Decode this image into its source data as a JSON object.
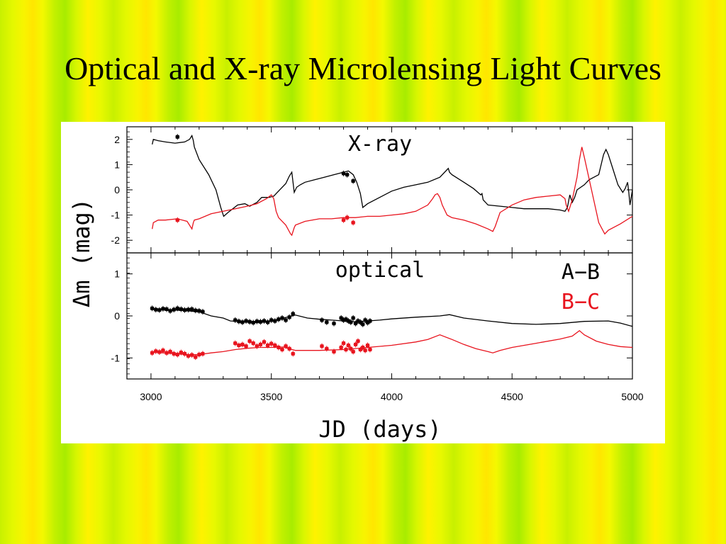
{
  "slide": {
    "title": "Optical and X-ray Microlensing Light Curves"
  },
  "chart_data": {
    "type": "line",
    "xlabel": "JD (days)",
    "ylabel": "Δm (mag)",
    "xlim": [
      2900,
      5000
    ],
    "x_ticks": [
      "3000",
      "3500",
      "4000",
      "4500",
      "5000"
    ],
    "legend": {
      "placement": "top-right of lower panel",
      "entries": [
        {
          "label": "A−B",
          "color": "#000000"
        },
        {
          "label": "B−C",
          "color": "#e8141e"
        }
      ]
    },
    "panels": [
      {
        "label": "X-ray",
        "ylim": [
          -2.5,
          2.5
        ],
        "y_ticks": [
          "2",
          "1",
          "0",
          "-1",
          "-2"
        ],
        "series": [
          {
            "color": "#000000",
            "x": [
              3005,
              3010,
              3030,
              3060,
              3100,
              3140,
              3160,
              3170,
              3176,
              3180,
              3200,
              3240,
              3270,
              3290,
              3302,
              3320,
              3360,
              3390,
              3410,
              3440,
              3460,
              3490,
              3510,
              3540,
              3560,
              3575,
              3585,
              3595,
              3605,
              3620,
              3640,
              3680,
              3720,
              3760,
              3800,
              3820,
              3840,
              3855,
              3870,
              3880,
              3900,
              3950,
              4000,
              4050,
              4100,
              4150,
              4200,
              4230,
              4235,
              4240,
              4250,
              4300,
              4340,
              4370,
              4375,
              4380,
              4400,
              4450,
              4500,
              4550,
              4600,
              4650,
              4700,
              4720,
              4730,
              4740,
              4750,
              4760,
              4770,
              4800,
              4820,
              4840,
              4860,
              4880,
              4890,
              4900,
              4920,
              4940,
              4960,
              4970,
              4980,
              4985,
              4990,
              5000
            ],
            "y": [
              1.8,
              2.0,
              1.95,
              1.9,
              1.85,
              1.9,
              2.0,
              2.15,
              1.95,
              1.7,
              1.2,
              0.6,
              0.0,
              -0.7,
              -1.05,
              -0.9,
              -0.6,
              -0.55,
              -0.65,
              -0.5,
              -0.3,
              -0.3,
              -0.25,
              0.05,
              0.25,
              0.55,
              0.7,
              -0.1,
              0.1,
              0.2,
              0.3,
              0.4,
              0.5,
              0.6,
              0.7,
              0.75,
              0.6,
              0.3,
              -0.15,
              -0.7,
              -0.55,
              -0.3,
              -0.05,
              0.1,
              0.2,
              0.3,
              0.5,
              0.8,
              0.85,
              0.7,
              0.6,
              0.3,
              0.05,
              -0.2,
              -0.15,
              -0.4,
              -0.6,
              -0.65,
              -0.7,
              -0.75,
              -0.75,
              -0.75,
              -0.8,
              -0.85,
              -0.7,
              -0.2,
              -0.5,
              -0.3,
              0.0,
              0.2,
              0.4,
              0.5,
              0.6,
              1.4,
              1.6,
              1.4,
              0.8,
              0.2,
              -0.1,
              0.05,
              0.3,
              -0.1,
              -0.6,
              0.0
            ]
          },
          {
            "color": "#e8141e",
            "x": [
              3005,
              3010,
              3030,
              3060,
              3110,
              3150,
              3170,
              3176,
              3180,
              3200,
              3250,
              3300,
              3350,
              3400,
              3440,
              3480,
              3500,
              3510,
              3520,
              3530,
              3560,
              3580,
              3585,
              3595,
              3600,
              3640,
              3700,
              3750,
              3800,
              3850,
              3900,
              3950,
              4000,
              4050,
              4100,
              4150,
              4170,
              4180,
              4190,
              4200,
              4210,
              4230,
              4250,
              4300,
              4350,
              4400,
              4420,
              4430,
              4450,
              4500,
              4550,
              4600,
              4650,
              4700,
              4720,
              4725,
              4735,
              4750,
              4770,
              4780,
              4790,
              4800,
              4830,
              4860,
              4885,
              4890,
              4900,
              4950,
              5000
            ],
            "y": [
              -1.55,
              -1.3,
              -1.2,
              -1.2,
              -1.15,
              -1.25,
              -1.55,
              -1.3,
              -1.2,
              -1.15,
              -0.95,
              -0.85,
              -0.75,
              -0.65,
              -0.55,
              -0.35,
              -0.2,
              -0.35,
              -0.85,
              -1.1,
              -1.4,
              -1.75,
              -1.8,
              -1.5,
              -1.4,
              -1.25,
              -1.15,
              -1.15,
              -1.1,
              -1.1,
              -1.05,
              -1.05,
              -1.0,
              -0.95,
              -0.85,
              -0.6,
              -0.35,
              -0.2,
              -0.15,
              -0.3,
              -0.6,
              -1.0,
              -1.1,
              -1.2,
              -1.35,
              -1.55,
              -1.65,
              -1.45,
              -0.9,
              -0.6,
              -0.4,
              -0.3,
              -0.25,
              -0.2,
              -0.35,
              -0.6,
              -0.85,
              -0.4,
              0.5,
              1.2,
              1.7,
              1.3,
              0.0,
              -1.3,
              -1.75,
              -1.7,
              -1.6,
              -1.35,
              -1.05
            ]
          }
        ],
        "data_points": [
          {
            "color": "#000000",
            "x": [
              3110,
              3800,
              3815,
              3840
            ],
            "y": [
              2.1,
              0.65,
              0.6,
              0.35
            ]
          },
          {
            "color": "#e8141e",
            "x": [
              3110,
              3800,
              3815,
              3840
            ],
            "y": [
              -1.2,
              -1.2,
              -1.1,
              -1.3
            ]
          }
        ]
      },
      {
        "label": "optical",
        "ylim": [
          -1.5,
          1.5
        ],
        "y_ticks": [
          "1",
          "0",
          "-1"
        ],
        "series": [
          {
            "color": "#000000",
            "x": [
              3000,
              3050,
              3100,
              3150,
              3200,
              3250,
              3300,
              3330,
              3400,
              3450,
              3500,
              3550,
              3600,
              3650,
              3700,
              3750,
              3800,
              3850,
              3900,
              3950,
              4000,
              4100,
              4200,
              4240,
              4300,
              4400,
              4500,
              4600,
              4700,
              4800,
              4900,
              4950,
              5000
            ],
            "y": [
              0.18,
              0.15,
              0.14,
              0.12,
              0.1,
              0.0,
              -0.05,
              -0.12,
              -0.14,
              -0.15,
              -0.12,
              -0.05,
              0.02,
              -0.05,
              -0.08,
              -0.1,
              -0.12,
              -0.14,
              -0.12,
              -0.1,
              -0.07,
              -0.03,
              0.0,
              0.03,
              -0.05,
              -0.12,
              -0.18,
              -0.2,
              -0.18,
              -0.13,
              -0.12,
              -0.17,
              -0.25
            ]
          },
          {
            "color": "#e8141e",
            "x": [
              3000,
              3050,
              3100,
              3150,
              3200,
              3250,
              3300,
              3350,
              3400,
              3450,
              3500,
              3550,
              3600,
              3700,
              3800,
              3900,
              4000,
              4100,
              4150,
              4200,
              4250,
              4300,
              4350,
              4400,
              4420,
              4450,
              4500,
              4600,
              4700,
              4750,
              4780,
              4800,
              4850,
              4900,
              4950,
              5000
            ],
            "y": [
              -0.85,
              -0.88,
              -0.9,
              -0.92,
              -0.92,
              -0.88,
              -0.85,
              -0.8,
              -0.77,
              -0.75,
              -0.75,
              -0.74,
              -0.82,
              -0.82,
              -0.8,
              -0.75,
              -0.7,
              -0.62,
              -0.56,
              -0.45,
              -0.56,
              -0.68,
              -0.78,
              -0.85,
              -0.88,
              -0.82,
              -0.75,
              -0.65,
              -0.55,
              -0.48,
              -0.35,
              -0.45,
              -0.6,
              -0.68,
              -0.73,
              -0.75
            ]
          }
        ],
        "data_points": [
          {
            "color": "#000000",
            "x": [
              3005,
              3020,
              3035,
              3050,
              3065,
              3080,
              3095,
              3110,
              3125,
              3140,
              3155,
              3170,
              3185,
              3200,
              3215,
              3350,
              3365,
              3380,
              3395,
              3410,
              3425,
              3440,
              3455,
              3470,
              3485,
              3500,
              3515,
              3530,
              3545,
              3560,
              3575,
              3590,
              3710,
              3730,
              3760,
              3790,
              3800,
              3810,
              3820,
              3830,
              3840,
              3850,
              3860,
              3870,
              3880,
              3890,
              3900,
              3910
            ],
            "y": [
              0.18,
              0.15,
              0.14,
              0.17,
              0.16,
              0.12,
              0.15,
              0.18,
              0.16,
              0.14,
              0.15,
              0.16,
              0.13,
              0.12,
              0.1,
              -0.1,
              -0.13,
              -0.15,
              -0.12,
              -0.14,
              -0.16,
              -0.13,
              -0.14,
              -0.12,
              -0.15,
              -0.1,
              -0.12,
              -0.08,
              -0.05,
              -0.1,
              -0.03,
              0.05,
              -0.1,
              -0.15,
              -0.18,
              -0.05,
              -0.1,
              -0.08,
              -0.12,
              -0.15,
              -0.05,
              -0.18,
              -0.12,
              -0.15,
              -0.2,
              -0.1,
              -0.16,
              -0.12
            ]
          },
          {
            "color": "#e8141e",
            "x": [
              3005,
              3020,
              3035,
              3050,
              3065,
              3080,
              3095,
              3110,
              3125,
              3140,
              3155,
              3170,
              3185,
              3200,
              3215,
              3350,
              3365,
              3380,
              3395,
              3410,
              3425,
              3440,
              3455,
              3470,
              3485,
              3500,
              3515,
              3530,
              3545,
              3560,
              3575,
              3590,
              3710,
              3730,
              3760,
              3790,
              3800,
              3810,
              3820,
              3830,
              3840,
              3850,
              3860,
              3870,
              3880,
              3890,
              3900,
              3910
            ],
            "y": [
              -0.88,
              -0.84,
              -0.86,
              -0.82,
              -0.88,
              -0.85,
              -0.9,
              -0.92,
              -0.87,
              -0.9,
              -0.95,
              -0.93,
              -0.98,
              -0.92,
              -0.9,
              -0.65,
              -0.7,
              -0.68,
              -0.72,
              -0.6,
              -0.65,
              -0.72,
              -0.68,
              -0.62,
              -0.7,
              -0.66,
              -0.7,
              -0.75,
              -0.8,
              -0.72,
              -0.78,
              -0.9,
              -0.72,
              -0.78,
              -0.85,
              -0.75,
              -0.65,
              -0.8,
              -0.7,
              -0.78,
              -0.85,
              -0.68,
              -0.6,
              -0.8,
              -0.75,
              -0.82,
              -0.7,
              -0.8
            ]
          }
        ]
      }
    ]
  }
}
